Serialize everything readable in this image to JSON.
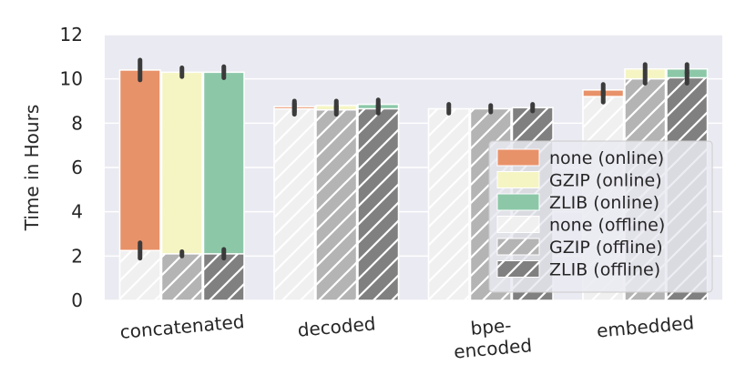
{
  "chart_data": {
    "type": "bar",
    "stacked_overlay": true,
    "categories": [
      "concatenated",
      "decoded",
      "bpe-\nencoded",
      "embedded"
    ],
    "ylabel": "Time in Hours",
    "ylim": [
      0,
      12
    ],
    "yticks": [
      0,
      2,
      4,
      6,
      8,
      10,
      12
    ],
    "grid": true,
    "legend_position": "right",
    "series": [
      {
        "name": "none (online)",
        "values": [
          10.4,
          8.75,
          null,
          9.5
        ],
        "error": [
          0.45,
          0.25,
          null,
          0.25
        ],
        "color": "#E8926A",
        "hatch": false
      },
      {
        "name": "GZIP (online)",
        "values": [
          10.3,
          8.8,
          null,
          10.45
        ],
        "error": [
          0.2,
          0.2,
          null,
          0.2
        ],
        "color": "#F5F5C4",
        "hatch": false
      },
      {
        "name": "ZLIB (online)",
        "values": [
          10.3,
          8.85,
          null,
          10.45
        ],
        "error": [
          0.25,
          0.2,
          null,
          0.2
        ],
        "color": "#8CC8A8",
        "hatch": false
      },
      {
        "name": "none (offline)",
        "values": [
          2.25,
          8.65,
          8.65,
          9.2
        ],
        "error": [
          0.35,
          0.25,
          0.2,
          0.25
        ],
        "color": "#F0F0F0",
        "hatch": true
      },
      {
        "name": "GZIP (offline)",
        "values": [
          2.1,
          8.6,
          8.65,
          10.0
        ],
        "error": [
          0.1,
          0.2,
          0.15,
          0.2
        ],
        "color": "#B4B4B4",
        "hatch": true
      },
      {
        "name": "ZLIB (offline)",
        "values": [
          2.1,
          8.65,
          8.7,
          10.05
        ],
        "error": [
          0.2,
          0.2,
          0.15,
          0.25
        ],
        "color": "#808080",
        "hatch": true
      }
    ]
  }
}
